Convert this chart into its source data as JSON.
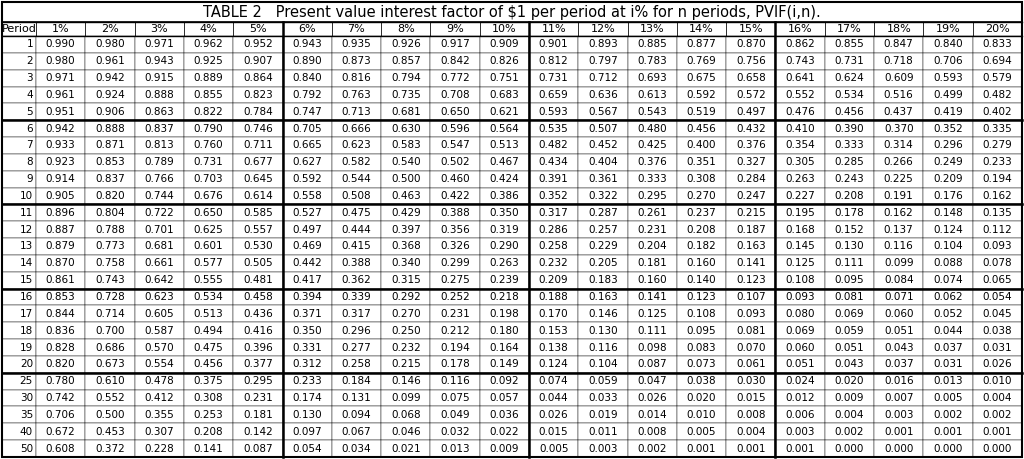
{
  "title": "TABLE 2   Present value interest factor of $1 per period at i% for n periods, PVIF(i,n).",
  "columns": [
    "Period",
    "1%",
    "2%",
    "3%",
    "4%",
    "5%",
    "6%",
    "7%",
    "8%",
    "9%",
    "10%",
    "11%",
    "12%",
    "13%",
    "14%",
    "15%",
    "16%",
    "17%",
    "18%",
    "19%",
    "20%"
  ],
  "data": [
    [
      1,
      0.99,
      0.98,
      0.971,
      0.962,
      0.952,
      0.943,
      0.935,
      0.926,
      0.917,
      0.909,
      0.901,
      0.893,
      0.885,
      0.877,
      0.87,
      0.862,
      0.855,
      0.847,
      0.84,
      0.833
    ],
    [
      2,
      0.98,
      0.961,
      0.943,
      0.925,
      0.907,
      0.89,
      0.873,
      0.857,
      0.842,
      0.826,
      0.812,
      0.797,
      0.783,
      0.769,
      0.756,
      0.743,
      0.731,
      0.718,
      0.706,
      0.694
    ],
    [
      3,
      0.971,
      0.942,
      0.915,
      0.889,
      0.864,
      0.84,
      0.816,
      0.794,
      0.772,
      0.751,
      0.731,
      0.712,
      0.693,
      0.675,
      0.658,
      0.641,
      0.624,
      0.609,
      0.593,
      0.579
    ],
    [
      4,
      0.961,
      0.924,
      0.888,
      0.855,
      0.823,
      0.792,
      0.763,
      0.735,
      0.708,
      0.683,
      0.659,
      0.636,
      0.613,
      0.592,
      0.572,
      0.552,
      0.534,
      0.516,
      0.499,
      0.482
    ],
    [
      5,
      0.951,
      0.906,
      0.863,
      0.822,
      0.784,
      0.747,
      0.713,
      0.681,
      0.65,
      0.621,
      0.593,
      0.567,
      0.543,
      0.519,
      0.497,
      0.476,
      0.456,
      0.437,
      0.419,
      0.402
    ],
    [
      6,
      0.942,
      0.888,
      0.837,
      0.79,
      0.746,
      0.705,
      0.666,
      0.63,
      0.596,
      0.564,
      0.535,
      0.507,
      0.48,
      0.456,
      0.432,
      0.41,
      0.39,
      0.37,
      0.352,
      0.335
    ],
    [
      7,
      0.933,
      0.871,
      0.813,
      0.76,
      0.711,
      0.665,
      0.623,
      0.583,
      0.547,
      0.513,
      0.482,
      0.452,
      0.425,
      0.4,
      0.376,
      0.354,
      0.333,
      0.314,
      0.296,
      0.279
    ],
    [
      8,
      0.923,
      0.853,
      0.789,
      0.731,
      0.677,
      0.627,
      0.582,
      0.54,
      0.502,
      0.467,
      0.434,
      0.404,
      0.376,
      0.351,
      0.327,
      0.305,
      0.285,
      0.266,
      0.249,
      0.233
    ],
    [
      9,
      0.914,
      0.837,
      0.766,
      0.703,
      0.645,
      0.592,
      0.544,
      0.5,
      0.46,
      0.424,
      0.391,
      0.361,
      0.333,
      0.308,
      0.284,
      0.263,
      0.243,
      0.225,
      0.209,
      0.194
    ],
    [
      10,
      0.905,
      0.82,
      0.744,
      0.676,
      0.614,
      0.558,
      0.508,
      0.463,
      0.422,
      0.386,
      0.352,
      0.322,
      0.295,
      0.27,
      0.247,
      0.227,
      0.208,
      0.191,
      0.176,
      0.162
    ],
    [
      11,
      0.896,
      0.804,
      0.722,
      0.65,
      0.585,
      0.527,
      0.475,
      0.429,
      0.388,
      0.35,
      0.317,
      0.287,
      0.261,
      0.237,
      0.215,
      0.195,
      0.178,
      0.162,
      0.148,
      0.135
    ],
    [
      12,
      0.887,
      0.788,
      0.701,
      0.625,
      0.557,
      0.497,
      0.444,
      0.397,
      0.356,
      0.319,
      0.286,
      0.257,
      0.231,
      0.208,
      0.187,
      0.168,
      0.152,
      0.137,
      0.124,
      0.112
    ],
    [
      13,
      0.879,
      0.773,
      0.681,
      0.601,
      0.53,
      0.469,
      0.415,
      0.368,
      0.326,
      0.29,
      0.258,
      0.229,
      0.204,
      0.182,
      0.163,
      0.145,
      0.13,
      0.116,
      0.104,
      0.093
    ],
    [
      14,
      0.87,
      0.758,
      0.661,
      0.577,
      0.505,
      0.442,
      0.388,
      0.34,
      0.299,
      0.263,
      0.232,
      0.205,
      0.181,
      0.16,
      0.141,
      0.125,
      0.111,
      0.099,
      0.088,
      0.078
    ],
    [
      15,
      0.861,
      0.743,
      0.642,
      0.555,
      0.481,
      0.417,
      0.362,
      0.315,
      0.275,
      0.239,
      0.209,
      0.183,
      0.16,
      0.14,
      0.123,
      0.108,
      0.095,
      0.084,
      0.074,
      0.065
    ],
    [
      16,
      0.853,
      0.728,
      0.623,
      0.534,
      0.458,
      0.394,
      0.339,
      0.292,
      0.252,
      0.218,
      0.188,
      0.163,
      0.141,
      0.123,
      0.107,
      0.093,
      0.081,
      0.071,
      0.062,
      0.054
    ],
    [
      17,
      0.844,
      0.714,
      0.605,
      0.513,
      0.436,
      0.371,
      0.317,
      0.27,
      0.231,
      0.198,
      0.17,
      0.146,
      0.125,
      0.108,
      0.093,
      0.08,
      0.069,
      0.06,
      0.052,
      0.045
    ],
    [
      18,
      0.836,
      0.7,
      0.587,
      0.494,
      0.416,
      0.35,
      0.296,
      0.25,
      0.212,
      0.18,
      0.153,
      0.13,
      0.111,
      0.095,
      0.081,
      0.069,
      0.059,
      0.051,
      0.044,
      0.038
    ],
    [
      19,
      0.828,
      0.686,
      0.57,
      0.475,
      0.396,
      0.331,
      0.277,
      0.232,
      0.194,
      0.164,
      0.138,
      0.116,
      0.098,
      0.083,
      0.07,
      0.06,
      0.051,
      0.043,
      0.037,
      0.031
    ],
    [
      20,
      0.82,
      0.673,
      0.554,
      0.456,
      0.377,
      0.312,
      0.258,
      0.215,
      0.178,
      0.149,
      0.124,
      0.104,
      0.087,
      0.073,
      0.061,
      0.051,
      0.043,
      0.037,
      0.031,
      0.026
    ],
    [
      25,
      0.78,
      0.61,
      0.478,
      0.375,
      0.295,
      0.233,
      0.184,
      0.146,
      0.116,
      0.092,
      0.074,
      0.059,
      0.047,
      0.038,
      0.03,
      0.024,
      0.02,
      0.016,
      0.013,
      0.01
    ],
    [
      30,
      0.742,
      0.552,
      0.412,
      0.308,
      0.231,
      0.174,
      0.131,
      0.099,
      0.075,
      0.057,
      0.044,
      0.033,
      0.026,
      0.02,
      0.015,
      0.012,
      0.009,
      0.007,
      0.005,
      0.004
    ],
    [
      35,
      0.706,
      0.5,
      0.355,
      0.253,
      0.181,
      0.13,
      0.094,
      0.068,
      0.049,
      0.036,
      0.026,
      0.019,
      0.014,
      0.01,
      0.008,
      0.006,
      0.004,
      0.003,
      0.002,
      0.002
    ],
    [
      40,
      0.672,
      0.453,
      0.307,
      0.208,
      0.142,
      0.097,
      0.067,
      0.046,
      0.032,
      0.022,
      0.015,
      0.011,
      0.008,
      0.005,
      0.004,
      0.003,
      0.002,
      0.001,
      0.001,
      0.001
    ],
    [
      50,
      0.608,
      0.372,
      0.228,
      0.141,
      0.087,
      0.054,
      0.034,
      0.021,
      0.013,
      0.009,
      0.005,
      0.003,
      0.002,
      0.001,
      0.001,
      0.001,
      0.0,
      0.0,
      0.0,
      0.0
    ]
  ],
  "thick_row_after": [
    4,
    9,
    14,
    19
  ],
  "thick_col_after": [
    5,
    10,
    15
  ],
  "bg_color": "#ffffff",
  "title_fontsize": 10.5,
  "cell_fontsize": 7.5,
  "header_fontsize": 8.0
}
